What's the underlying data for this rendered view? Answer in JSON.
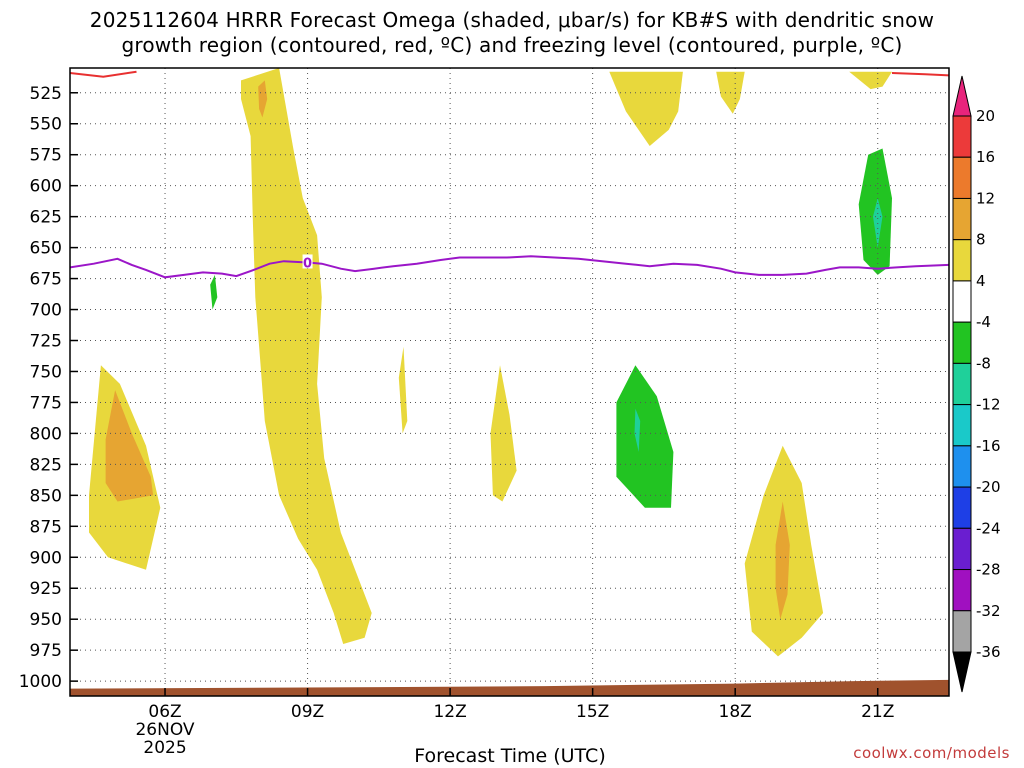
{
  "chart_data": {
    "type": "heatmap",
    "title_line1": "2025112604 HRRR Forecast Omega (shaded, μbar/s) for KB#S with dendritic snow",
    "title_line2": "growth region (contoured, red, ºC) and freezing level (contoured, purple, ºC)",
    "xlabel": "Forecast Time (UTC)",
    "credit": "coolwx.com/models",
    "x_range_hours": [
      4,
      22.5
    ],
    "y_range_hpa": [
      505,
      1012
    ],
    "x_ticks": [
      {
        "hour": 6,
        "label": "06Z",
        "sub1": "26NOV",
        "sub2": "2025"
      },
      {
        "hour": 9,
        "label": "09Z"
      },
      {
        "hour": 12,
        "label": "12Z"
      },
      {
        "hour": 15,
        "label": "15Z"
      },
      {
        "hour": 18,
        "label": "18Z"
      },
      {
        "hour": 21,
        "label": "21Z"
      }
    ],
    "y_ticks": [
      "525",
      "550",
      "575",
      "600",
      "625",
      "650",
      "675",
      "700",
      "725",
      "750",
      "775",
      "800",
      "825",
      "850",
      "875",
      "900",
      "925",
      "950",
      "975",
      "1000"
    ],
    "colorbar": {
      "labels": [
        "20",
        "16",
        "12",
        "8",
        "4",
        "-4",
        "-8",
        "-12",
        "-16",
        "-20",
        "-24",
        "-28",
        "-32",
        "-36"
      ],
      "levels": [
        {
          "lo": 20,
          "hi": 24,
          "color": "#e8247c"
        },
        {
          "lo": 16,
          "hi": 20,
          "color": "#ec3a3a"
        },
        {
          "lo": 12,
          "hi": 16,
          "color": "#ec7a2c"
        },
        {
          "lo": 8,
          "hi": 12,
          "color": "#e6a532"
        },
        {
          "lo": 4,
          "hi": 8,
          "color": "#e8d83c"
        },
        {
          "lo": -4,
          "hi": 4,
          "color": "#ffffff"
        },
        {
          "lo": -8,
          "hi": -4,
          "color": "#22c422"
        },
        {
          "lo": -12,
          "hi": -8,
          "color": "#1fd09a"
        },
        {
          "lo": -16,
          "hi": -12,
          "color": "#1ac9c9"
        },
        {
          "lo": -20,
          "hi": -16,
          "color": "#1e90ee"
        },
        {
          "lo": -24,
          "hi": -20,
          "color": "#1e3fe6"
        },
        {
          "lo": -28,
          "hi": -24,
          "color": "#6a1ed0"
        },
        {
          "lo": -32,
          "hi": -28,
          "color": "#a010c0"
        },
        {
          "lo": -36,
          "hi": -32,
          "color": "#a4a4a4"
        },
        {
          "lo": -40,
          "hi": -36,
          "color": "#000000"
        }
      ]
    },
    "shaded_regions": [
      {
        "name": "omega-positive-0430z-low",
        "level": 4,
        "points": [
          [
            4.4,
            850
          ],
          [
            4.65,
            745
          ],
          [
            5.05,
            760
          ],
          [
            5.6,
            810
          ],
          [
            5.9,
            860
          ],
          [
            5.6,
            910
          ],
          [
            4.8,
            900
          ],
          [
            4.4,
            880
          ]
        ]
      },
      {
        "name": "omega-positive-0430z-core",
        "level": 8,
        "points": [
          [
            4.75,
            805
          ],
          [
            4.95,
            765
          ],
          [
            5.3,
            800
          ],
          [
            5.7,
            835
          ],
          [
            5.75,
            850
          ],
          [
            5.0,
            855
          ],
          [
            4.75,
            840
          ]
        ]
      },
      {
        "name": "omega-negative-0700z",
        "level": -4,
        "points": [
          [
            6.0,
            675
          ],
          [
            6.2,
            655
          ],
          [
            6.5,
            640
          ],
          [
            6.95,
            620
          ],
          [
            7.2,
            660
          ],
          [
            7.4,
            685
          ],
          [
            7.15,
            730
          ],
          [
            6.7,
            730
          ],
          [
            6.3,
            725
          ],
          [
            6.0,
            720
          ]
        ]
      },
      {
        "name": "omega-negative-0700z-core",
        "level": -8,
        "points": [
          [
            6.95,
            680
          ],
          [
            7.05,
            672
          ],
          [
            7.1,
            690
          ],
          [
            7.0,
            700
          ]
        ]
      },
      {
        "name": "omega-positive-0830z-column",
        "level": 4,
        "points": [
          [
            7.6,
            515
          ],
          [
            8.4,
            505
          ],
          [
            8.7,
            570
          ],
          [
            8.9,
            610
          ],
          [
            9.2,
            640
          ],
          [
            9.3,
            690
          ],
          [
            9.2,
            760
          ],
          [
            9.35,
            820
          ],
          [
            9.7,
            880
          ],
          [
            10.1,
            920
          ],
          [
            10.35,
            945
          ],
          [
            10.2,
            965
          ],
          [
            9.75,
            970
          ],
          [
            9.55,
            945
          ],
          [
            9.2,
            910
          ],
          [
            8.8,
            885
          ],
          [
            8.4,
            850
          ],
          [
            8.1,
            790
          ],
          [
            8.0,
            740
          ],
          [
            7.9,
            690
          ],
          [
            7.85,
            630
          ],
          [
            7.8,
            560
          ],
          [
            7.6,
            530
          ]
        ]
      },
      {
        "name": "omega-positive-0830z-core",
        "level": 8,
        "points": [
          [
            7.96,
            520
          ],
          [
            8.1,
            515
          ],
          [
            8.15,
            530
          ],
          [
            8.05,
            545
          ],
          [
            7.98,
            538
          ]
        ]
      },
      {
        "name": "omega-negative-0830z-low",
        "level": -4,
        "points": [
          [
            7.5,
            930
          ],
          [
            7.75,
            880
          ],
          [
            7.9,
            900
          ],
          [
            8.0,
            935
          ],
          [
            8.35,
            950
          ],
          [
            8.7,
            960
          ],
          [
            8.9,
            980
          ],
          [
            8.9,
            1000
          ],
          [
            8.4,
            990
          ],
          [
            7.9,
            985
          ],
          [
            7.55,
            975
          ]
        ]
      },
      {
        "name": "omega-negative-1100z-top",
        "level": -4,
        "points": [
          [
            10.1,
            508
          ],
          [
            11.25,
            508
          ],
          [
            11.0,
            530
          ],
          [
            10.9,
            535
          ],
          [
            10.6,
            520
          ]
        ]
      },
      {
        "name": "omega-positive-1100z-sliver",
        "level": 4,
        "points": [
          [
            10.92,
            755
          ],
          [
            11.02,
            730
          ],
          [
            11.1,
            790
          ],
          [
            11.0,
            800
          ]
        ]
      },
      {
        "name": "omega-negative-1300z",
        "level": -4,
        "points": [
          [
            12.8,
            628
          ],
          [
            13.0,
            607
          ],
          [
            13.15,
            630
          ],
          [
            13.0,
            655
          ]
        ]
      },
      {
        "name": "omega-positive-1300z",
        "level": 4,
        "points": [
          [
            12.85,
            800
          ],
          [
            13.05,
            745
          ],
          [
            13.25,
            785
          ],
          [
            13.4,
            830
          ],
          [
            13.1,
            855
          ],
          [
            12.9,
            850
          ]
        ]
      },
      {
        "name": "omega-positive-1630z-top",
        "level": 4,
        "points": [
          [
            15.35,
            508
          ],
          [
            16.9,
            508
          ],
          [
            16.8,
            540
          ],
          [
            16.6,
            555
          ],
          [
            16.2,
            568
          ],
          [
            15.7,
            540
          ]
        ]
      },
      {
        "name": "omega-negative-1600z-large",
        "level": -4,
        "points": [
          [
            15.15,
            770
          ],
          [
            15.35,
            730
          ],
          [
            15.9,
            715
          ],
          [
            16.5,
            725
          ],
          [
            17.1,
            745
          ],
          [
            17.5,
            770
          ],
          [
            18.2,
            755
          ],
          [
            18.8,
            740
          ],
          [
            19.7,
            723
          ],
          [
            20.3,
            700
          ],
          [
            20.8,
            670
          ],
          [
            20.75,
            630
          ],
          [
            20.6,
            600
          ],
          [
            20.9,
            575
          ],
          [
            21.6,
            560
          ],
          [
            22.3,
            545
          ],
          [
            22.5,
            525
          ],
          [
            22.5,
            895
          ],
          [
            22.3,
            880
          ],
          [
            22.0,
            840
          ],
          [
            21.8,
            810
          ],
          [
            21.3,
            790
          ],
          [
            20.6,
            800
          ],
          [
            20.5,
            835
          ],
          [
            20.3,
            865
          ],
          [
            20.15,
            890
          ],
          [
            20.0,
            888
          ],
          [
            19.9,
            840
          ],
          [
            19.7,
            790
          ],
          [
            19.3,
            770
          ],
          [
            18.9,
            752
          ],
          [
            18.55,
            760
          ],
          [
            18.3,
            790
          ],
          [
            17.9,
            850
          ],
          [
            17.6,
            880
          ],
          [
            17.2,
            907
          ],
          [
            16.6,
            902
          ],
          [
            15.95,
            890
          ],
          [
            15.4,
            875
          ],
          [
            15.2,
            830
          ],
          [
            15.15,
            800
          ]
        ]
      },
      {
        "name": "omega-negative-1600z-core",
        "level": -8,
        "points": [
          [
            15.5,
            775
          ],
          [
            15.9,
            745
          ],
          [
            16.35,
            770
          ],
          [
            16.7,
            815
          ],
          [
            16.65,
            860
          ],
          [
            16.1,
            860
          ],
          [
            15.5,
            835
          ]
        ]
      },
      {
        "name": "omega-negative-1600z-center",
        "level": -12,
        "points": [
          [
            15.9,
            780
          ],
          [
            16.0,
            790
          ],
          [
            15.97,
            815
          ],
          [
            15.88,
            800
          ]
        ]
      },
      {
        "name": "omega-positive-1800z-top",
        "level": 4,
        "points": [
          [
            17.6,
            508
          ],
          [
            18.2,
            508
          ],
          [
            18.1,
            530
          ],
          [
            17.95,
            542
          ],
          [
            17.7,
            528
          ]
        ]
      },
      {
        "name": "omega-negative-1900z",
        "level": -4,
        "points": [
          [
            18.5,
            640
          ],
          [
            18.8,
            615
          ],
          [
            19.3,
            590
          ],
          [
            19.65,
            620
          ],
          [
            19.95,
            660
          ],
          [
            19.6,
            690
          ],
          [
            19.2,
            700
          ],
          [
            18.7,
            705
          ],
          [
            18.5,
            680
          ]
        ]
      },
      {
        "name": "omega-positive-1900z-low",
        "level": 4,
        "points": [
          [
            18.2,
            905
          ],
          [
            18.6,
            850
          ],
          [
            19.0,
            810
          ],
          [
            19.4,
            840
          ],
          [
            19.6,
            890
          ],
          [
            19.85,
            945
          ],
          [
            19.4,
            965
          ],
          [
            18.9,
            980
          ],
          [
            18.35,
            960
          ]
        ]
      },
      {
        "name": "omega-positive-1900z-core",
        "level": 8,
        "points": [
          [
            18.85,
            890
          ],
          [
            19.0,
            855
          ],
          [
            19.15,
            890
          ],
          [
            19.1,
            930
          ],
          [
            18.95,
            950
          ],
          [
            18.85,
            925
          ]
        ]
      },
      {
        "name": "omega-positive-2100z-top",
        "level": 4,
        "points": [
          [
            20.4,
            508
          ],
          [
            21.3,
            508
          ],
          [
            21.1,
            520
          ],
          [
            20.85,
            522
          ]
        ]
      },
      {
        "name": "omega-negative-2100z-core",
        "level": -8,
        "points": [
          [
            20.6,
            615
          ],
          [
            20.8,
            575
          ],
          [
            21.1,
            570
          ],
          [
            21.3,
            610
          ],
          [
            21.25,
            665
          ],
          [
            21.0,
            672
          ],
          [
            20.7,
            660
          ]
        ]
      },
      {
        "name": "omega-negative-2100z-center",
        "level": -12,
        "points": [
          [
            20.9,
            625
          ],
          [
            21.0,
            610
          ],
          [
            21.1,
            625
          ],
          [
            21.0,
            650
          ]
        ]
      }
    ],
    "dgz_contours": [
      {
        "label": "dgz-top-left",
        "points": [
          [
            4.0,
            509
          ],
          [
            4.7,
            512
          ],
          [
            5.4,
            508
          ]
        ]
      },
      {
        "label": "dgz-top-right",
        "points": [
          [
            21.3,
            509
          ],
          [
            22.0,
            510
          ],
          [
            22.5,
            511
          ]
        ]
      }
    ],
    "freezing_level": {
      "label": "0",
      "label_hour": 9.0,
      "points": [
        [
          4.0,
          666
        ],
        [
          4.5,
          663
        ],
        [
          5.0,
          659
        ],
        [
          5.3,
          664
        ],
        [
          5.6,
          668
        ],
        [
          6.0,
          674
        ],
        [
          6.4,
          672
        ],
        [
          6.8,
          670
        ],
        [
          7.2,
          671
        ],
        [
          7.5,
          673
        ],
        [
          7.8,
          669
        ],
        [
          8.2,
          663
        ],
        [
          8.5,
          661
        ],
        [
          9.0,
          662
        ],
        [
          9.3,
          663
        ],
        [
          9.7,
          667
        ],
        [
          10.0,
          669
        ],
        [
          10.4,
          667
        ],
        [
          10.8,
          665
        ],
        [
          11.3,
          663
        ],
        [
          11.8,
          660
        ],
        [
          12.2,
          658
        ],
        [
          12.7,
          658
        ],
        [
          13.2,
          658
        ],
        [
          13.7,
          657
        ],
        [
          14.2,
          658
        ],
        [
          14.7,
          659
        ],
        [
          15.2,
          661
        ],
        [
          15.7,
          663
        ],
        [
          16.2,
          665
        ],
        [
          16.7,
          663
        ],
        [
          17.2,
          664
        ],
        [
          17.7,
          667
        ],
        [
          18.0,
          670
        ],
        [
          18.5,
          672
        ],
        [
          19.0,
          672
        ],
        [
          19.5,
          671
        ],
        [
          19.9,
          668
        ],
        [
          20.2,
          666
        ],
        [
          20.6,
          666
        ],
        [
          21.0,
          667
        ],
        [
          21.4,
          666
        ],
        [
          21.8,
          665
        ],
        [
          22.5,
          664
        ]
      ]
    },
    "terrain": {
      "color": "#a0522d",
      "points": [
        [
          4.0,
          1006
        ],
        [
          10.0,
          1005
        ],
        [
          14.0,
          1004
        ],
        [
          18.0,
          1002
        ],
        [
          20.5,
          1000
        ],
        [
          22.5,
          999
        ]
      ]
    }
  }
}
